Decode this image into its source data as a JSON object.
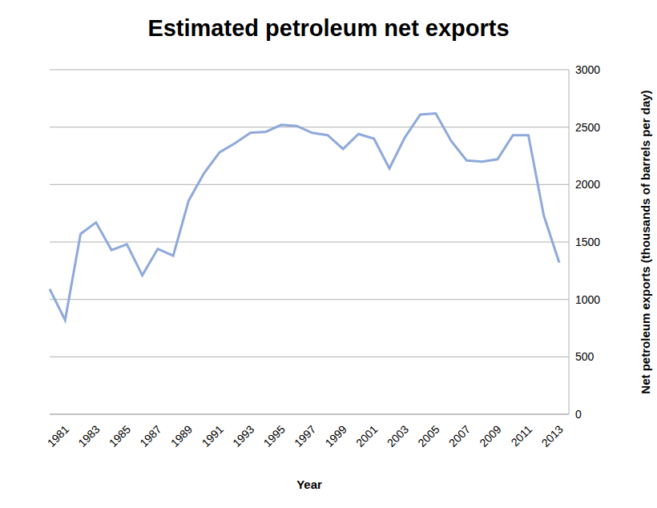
{
  "chart_data": {
    "type": "line",
    "title": "Estimated petroleum net exports",
    "x_label": "Year",
    "y_label": "Net petroleum exports (thousands of barrels per day)",
    "categories": [
      null,
      "1981",
      null,
      "1983",
      null,
      "1985",
      null,
      "1987",
      null,
      "1989",
      null,
      "1991",
      null,
      "1993",
      null,
      "1995",
      null,
      "1997",
      null,
      "1999",
      null,
      "2001",
      null,
      "2003",
      null,
      "2005",
      null,
      "2007",
      null,
      "2009",
      null,
      "2011",
      null,
      "2013"
    ],
    "values": [
      1090,
      820,
      1570,
      1670,
      1430,
      1480,
      1210,
      1440,
      1380,
      1860,
      2100,
      2280,
      2360,
      2450,
      2460,
      2520,
      2510,
      2450,
      2430,
      2310,
      2440,
      2400,
      2140,
      2410,
      2610,
      2620,
      2380,
      2210,
      2200,
      2220,
      2430,
      2430,
      1730,
      1320
    ],
    "color": "#8EA9DB",
    "ylim": [
      0,
      3000
    ],
    "yticks": [
      0,
      500,
      1000,
      1500,
      2000,
      2500,
      3000
    ],
    "grid": true
  }
}
